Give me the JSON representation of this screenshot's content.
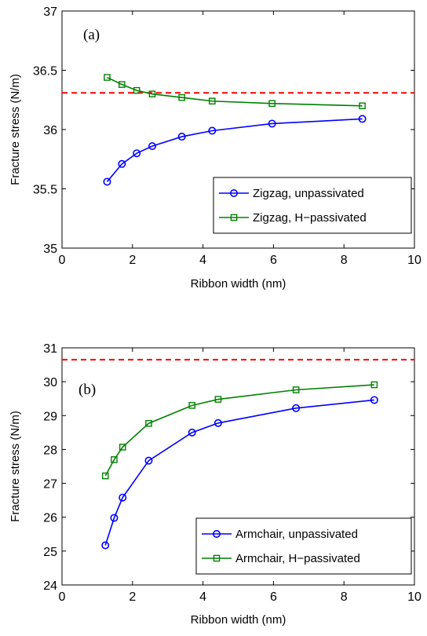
{
  "chart_data": [
    {
      "type": "line",
      "panel_label": "(a)",
      "xlabel": "Ribbon width (nm)",
      "ylabel": "Fracture stress (N/m)",
      "xlim": [
        0,
        10
      ],
      "ylim": [
        35,
        37
      ],
      "xticks": [
        0,
        2,
        4,
        6,
        8,
        10
      ],
      "yticks": [
        35,
        35.5,
        36,
        36.5,
        37
      ],
      "ytick_labels": [
        "35",
        "35.5",
        "36",
        "36.5",
        "37"
      ],
      "grid": false,
      "legend_position": "lower-right",
      "reference_line": {
        "y": 36.31,
        "color": "#ff0000",
        "style": "dashed"
      },
      "series": [
        {
          "name": "Zigzag, unpassivated",
          "color": "#0000ff",
          "marker": "circle",
          "x": [
            1.28,
            1.7,
            2.12,
            2.56,
            3.4,
            4.26,
            5.96,
            8.52
          ],
          "y": [
            35.56,
            35.71,
            35.8,
            35.86,
            35.94,
            35.99,
            36.05,
            36.09
          ]
        },
        {
          "name": "Zigzag, H−passivated",
          "color": "#008000",
          "marker": "square",
          "x": [
            1.28,
            1.7,
            2.12,
            2.56,
            3.4,
            4.26,
            5.96,
            8.52
          ],
          "y": [
            36.44,
            36.38,
            36.33,
            36.3,
            36.27,
            36.24,
            36.22,
            36.2
          ]
        }
      ]
    },
    {
      "type": "line",
      "panel_label": "(b)",
      "xlabel": "Ribbon width (nm)",
      "ylabel": "Fracture stress (N/m)",
      "xlim": [
        0,
        10
      ],
      "ylim": [
        24,
        31
      ],
      "xticks": [
        0,
        2,
        4,
        6,
        8,
        10
      ],
      "yticks": [
        24,
        25,
        26,
        27,
        28,
        29,
        30,
        31
      ],
      "ytick_labels": [
        "24",
        "25",
        "26",
        "27",
        "28",
        "29",
        "30",
        "31"
      ],
      "grid": false,
      "legend_position": "lower-right",
      "reference_line": {
        "y": 30.65,
        "color": "#ff0000",
        "style": "dashed"
      },
      "series": [
        {
          "name": "Armchair, unpassivated",
          "color": "#0000ff",
          "marker": "circle",
          "x": [
            1.23,
            1.48,
            1.72,
            2.46,
            3.69,
            4.43,
            6.64,
            8.86
          ],
          "y": [
            25.17,
            25.98,
            26.58,
            27.67,
            28.5,
            28.78,
            29.22,
            29.46
          ]
        },
        {
          "name": "Armchair, H−passivated",
          "color": "#008000",
          "marker": "square",
          "x": [
            1.23,
            1.48,
            1.72,
            2.46,
            3.69,
            4.43,
            6.64,
            8.86
          ],
          "y": [
            27.22,
            27.7,
            28.07,
            28.77,
            29.3,
            29.48,
            29.76,
            29.91
          ]
        }
      ]
    }
  ]
}
